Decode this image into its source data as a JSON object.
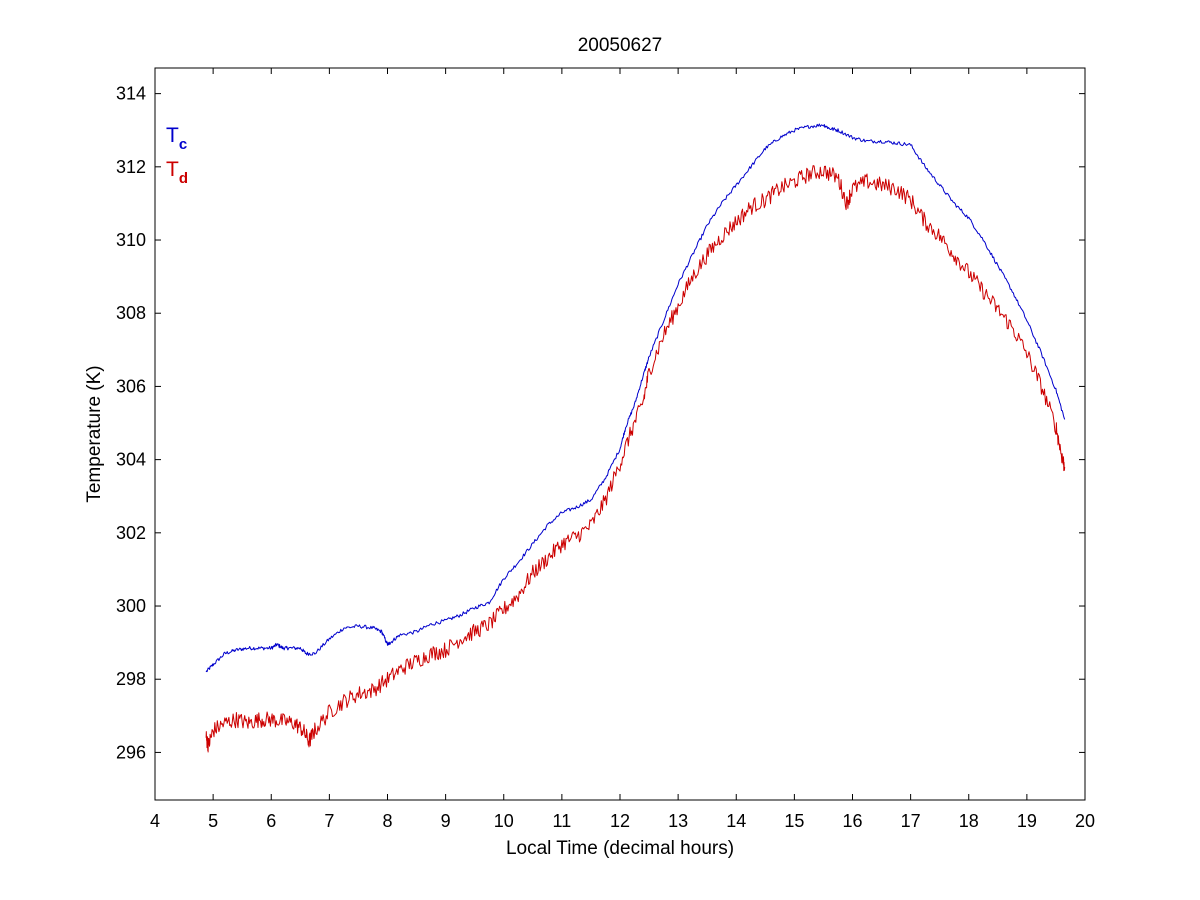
{
  "chart_data": {
    "type": "line",
    "title": "20050627",
    "xlabel": "Local Time (decimal hours)",
    "ylabel": "Temperature (K)",
    "xlim": [
      4,
      20
    ],
    "ylim": [
      294.7,
      314.7
    ],
    "xticks": [
      4,
      5,
      6,
      7,
      8,
      9,
      10,
      11,
      12,
      13,
      14,
      15,
      16,
      17,
      18,
      19,
      20
    ],
    "yticks": [
      296,
      298,
      300,
      302,
      304,
      306,
      308,
      310,
      312,
      314
    ],
    "grid": false,
    "legend": {
      "placement": "top-left",
      "entries": [
        {
          "main": "T",
          "sub": "c",
          "color": "#0000cc"
        },
        {
          "main": "T",
          "sub": "d",
          "color": "#cc0000"
        }
      ]
    },
    "series": [
      {
        "color": "#0000cc",
        "noise": 0.05,
        "x": [
          4.88,
          5.0,
          5.2,
          5.4,
          5.6,
          5.8,
          6.0,
          6.1,
          6.2,
          6.3,
          6.5,
          6.6,
          6.75,
          7.0,
          7.25,
          7.5,
          7.75,
          7.9,
          8.0,
          8.05,
          8.2,
          8.5,
          8.75,
          9.0,
          9.25,
          9.5,
          9.75,
          10.0,
          10.25,
          10.5,
          10.75,
          11.0,
          11.25,
          11.5,
          11.75,
          12.0,
          12.1,
          12.25,
          12.4,
          12.5,
          12.75,
          13.0,
          13.25,
          13.5,
          13.75,
          14.0,
          14.25,
          14.5,
          14.75,
          15.0,
          15.25,
          15.5,
          15.6,
          15.75,
          16.0,
          16.25,
          16.5,
          16.75,
          17.0,
          17.25,
          17.5,
          17.75,
          18.0,
          18.25,
          18.5,
          18.75,
          19.0,
          19.25,
          19.5,
          19.65
        ],
        "y": [
          298.2,
          298.4,
          298.7,
          298.8,
          298.85,
          298.85,
          298.85,
          298.95,
          298.85,
          298.85,
          298.85,
          298.7,
          298.7,
          299.1,
          299.4,
          299.45,
          299.4,
          299.3,
          298.95,
          299.0,
          299.2,
          299.3,
          299.5,
          299.6,
          299.75,
          299.95,
          300.1,
          300.75,
          301.2,
          301.7,
          302.2,
          302.55,
          302.7,
          302.9,
          303.5,
          304.3,
          304.9,
          305.5,
          306.3,
          306.8,
          307.8,
          308.8,
          309.6,
          310.4,
          311.0,
          311.5,
          312.0,
          312.5,
          312.8,
          313.0,
          313.1,
          313.15,
          313.05,
          313.0,
          312.8,
          312.7,
          312.7,
          312.65,
          312.6,
          312.0,
          311.5,
          311.0,
          310.6,
          310.0,
          309.3,
          308.6,
          307.8,
          306.9,
          305.9,
          305.1
        ]
      },
      {
        "color": "#cc0000",
        "noise": 0.22,
        "x": [
          4.88,
          4.92,
          5.0,
          5.2,
          5.4,
          5.6,
          5.8,
          6.0,
          6.2,
          6.4,
          6.55,
          6.65,
          6.75,
          7.0,
          7.25,
          7.5,
          7.75,
          8.0,
          8.25,
          8.5,
          8.75,
          9.0,
          9.25,
          9.5,
          9.75,
          10.0,
          10.25,
          10.5,
          10.75,
          11.0,
          11.25,
          11.5,
          11.75,
          12.0,
          12.2,
          12.4,
          12.5,
          12.75,
          13.0,
          13.25,
          13.5,
          13.75,
          14.0,
          14.25,
          14.5,
          14.75,
          15.0,
          15.25,
          15.5,
          15.75,
          15.9,
          16.0,
          16.25,
          16.5,
          16.75,
          17.0,
          17.25,
          17.5,
          17.75,
          18.0,
          18.25,
          18.5,
          18.75,
          19.0,
          19.25,
          19.5,
          19.6,
          19.65
        ],
        "y": [
          296.4,
          296.2,
          296.6,
          296.8,
          296.9,
          296.8,
          296.9,
          296.9,
          296.85,
          296.8,
          296.6,
          296.3,
          296.6,
          297.1,
          297.4,
          297.6,
          297.7,
          298.0,
          298.3,
          298.5,
          298.7,
          298.8,
          299.1,
          299.3,
          299.5,
          299.9,
          300.3,
          300.9,
          301.3,
          301.7,
          301.9,
          302.2,
          302.9,
          303.9,
          304.8,
          305.6,
          306.4,
          307.4,
          308.2,
          309.0,
          309.6,
          310.1,
          310.5,
          310.9,
          311.1,
          311.4,
          311.6,
          311.8,
          311.9,
          311.7,
          311.0,
          311.4,
          311.6,
          311.5,
          311.4,
          311.1,
          310.5,
          310.1,
          309.6,
          309.1,
          308.6,
          308.1,
          307.6,
          306.9,
          306.0,
          304.9,
          304.1,
          303.8
        ]
      }
    ]
  }
}
